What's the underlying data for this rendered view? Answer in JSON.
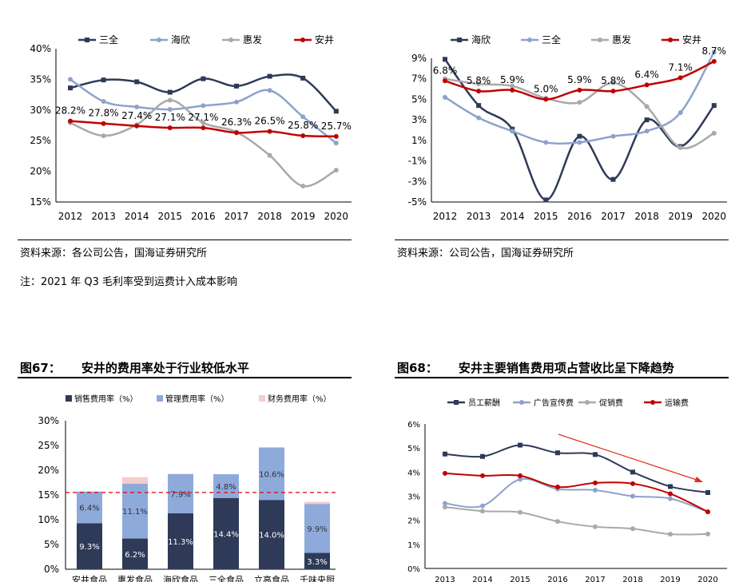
{
  "sources": {
    "left": "资料来源：各公司公告，国海证券研究所",
    "right": "资料来源：公司公告，国海证券研究所",
    "note": "注：2021 年 Q3 毛利率受到运费计入成本影响"
  },
  "figures": {
    "fig67": {
      "number": "图67：",
      "title": "安井的费用率处于行业较低水平"
    },
    "fig68": {
      "number": "图68：",
      "title": "安井主要销售费用项占营收比呈下降趋势"
    }
  },
  "chart_data": [
    {
      "type": "line",
      "x": [
        "2012",
        "2013",
        "2014",
        "2015",
        "2016",
        "2017",
        "2018",
        "2019",
        "2020"
      ],
      "yticks": [
        "40%",
        "35%",
        "30%",
        "25%",
        "20%",
        "15%"
      ],
      "ylim": [
        15,
        40
      ],
      "series": [
        {
          "name": "三全",
          "color": "#2e3a57",
          "values": [
            33.6,
            34.9,
            34.6,
            32.9,
            35.1,
            33.9,
            35.5,
            35.2,
            29.8
          ]
        },
        {
          "name": "海欣",
          "color": "#8ea2cc",
          "values": [
            35.0,
            31.4,
            30.5,
            30.1,
            30.7,
            31.3,
            33.2,
            28.9,
            24.6
          ]
        },
        {
          "name": "惠发",
          "color": "#a9a9a9",
          "values": [
            27.9,
            25.8,
            27.6,
            31.6,
            27.9,
            26.4,
            22.6,
            17.6,
            20.2
          ]
        },
        {
          "name": "安井",
          "color": "#c00000",
          "values": [
            28.2,
            27.8,
            27.4,
            27.1,
            27.1,
            26.3,
            26.5,
            25.8,
            25.7
          ],
          "labels": [
            "28.2%",
            "27.8%",
            "27.4%",
            "27.1%",
            "27.1%",
            "26.3%",
            "26.5%",
            "25.8%",
            "25.7%"
          ]
        }
      ]
    },
    {
      "type": "line",
      "x": [
        "2012",
        "2013",
        "2014",
        "2015",
        "2016",
        "2017",
        "2018",
        "2019",
        "2020"
      ],
      "yticks": [
        "9%",
        "7%",
        "5%",
        "3%",
        "1%",
        "-1%",
        "-3%",
        "-5%"
      ],
      "ylim": [
        -5,
        9
      ],
      "series": [
        {
          "name": "海欣",
          "color": "#2e3a57",
          "values": [
            8.9,
            4.4,
            2.1,
            -4.8,
            1.4,
            -2.8,
            3.0,
            0.4,
            4.4
          ]
        },
        {
          "name": "三全",
          "color": "#8ea2cc",
          "values": [
            5.2,
            3.2,
            1.9,
            0.8,
            0.8,
            1.4,
            1.9,
            3.7,
            9.6
          ]
        },
        {
          "name": "惠发",
          "color": "#a9a9a9",
          "values": [
            7.0,
            6.5,
            6.3,
            5.1,
            4.7,
            6.6,
            4.3,
            0.3,
            1.7
          ]
        },
        {
          "name": "安井",
          "color": "#c00000",
          "values": [
            6.8,
            5.8,
            5.9,
            5.0,
            5.9,
            5.8,
            6.4,
            7.1,
            8.7
          ],
          "labels": [
            "6.8%",
            "5.8%",
            "5.9%",
            "5.0%",
            "5.9%",
            "5.8%",
            "6.4%",
            "7.1%",
            "8.7%"
          ]
        }
      ]
    },
    {
      "type": "bar",
      "stacked": true,
      "categories": [
        "安井食品",
        "惠发食品",
        "海欣食品",
        "三全食品",
        "立高食品",
        "千味央厨"
      ],
      "yticks": [
        "30%",
        "25%",
        "20%",
        "15%",
        "10%",
        "5%",
        "0%"
      ],
      "ylim": [
        0,
        30
      ],
      "reference_line": 15.5,
      "series": [
        {
          "name": "销售费用率（%）",
          "color": "#2e3a57",
          "values": [
            9.3,
            6.2,
            11.3,
            14.4,
            14.0,
            3.3
          ],
          "labels": [
            "9.3%",
            "6.2%",
            "11.3%",
            "14.4%",
            "14.0%",
            "3.3%"
          ]
        },
        {
          "name": "管理费用率（%）",
          "color": "#8eaadb",
          "values": [
            6.4,
            11.1,
            7.9,
            4.8,
            10.6,
            9.9
          ],
          "labels": [
            "6.4%",
            "11.1%",
            "7.9%",
            "4.8%",
            "10.6%",
            "9.9%"
          ]
        },
        {
          "name": "财务费用率（%）",
          "color": "#f4cccc",
          "values": [
            0.0,
            1.3,
            0.1,
            0.0,
            0.0,
            0.4
          ]
        }
      ]
    },
    {
      "type": "line",
      "x": [
        "2013",
        "2014",
        "2015",
        "2016",
        "2017",
        "2018",
        "2019",
        "2020"
      ],
      "yticks": [
        "6%",
        "5%",
        "4%",
        "3%",
        "2%",
        "1%",
        "0%"
      ],
      "ylim": [
        0,
        6
      ],
      "series": [
        {
          "name": "员工薪酬",
          "color": "#2e3a57",
          "values": [
            4.75,
            4.65,
            5.12,
            4.8,
            4.73,
            4.0,
            3.4,
            3.15
          ]
        },
        {
          "name": "广告宣传费",
          "color": "#8ea2cc",
          "values": [
            2.7,
            2.6,
            3.7,
            3.3,
            3.25,
            3.0,
            2.9,
            2.35
          ]
        },
        {
          "name": "促销费",
          "color": "#a9a9a9",
          "values": [
            2.55,
            2.38,
            2.33,
            1.95,
            1.73,
            1.65,
            1.42,
            1.43
          ]
        },
        {
          "name": "运输费",
          "color": "#c00000",
          "values": [
            3.95,
            3.85,
            3.85,
            3.38,
            3.55,
            3.52,
            3.1,
            2.35
          ]
        }
      ]
    }
  ]
}
